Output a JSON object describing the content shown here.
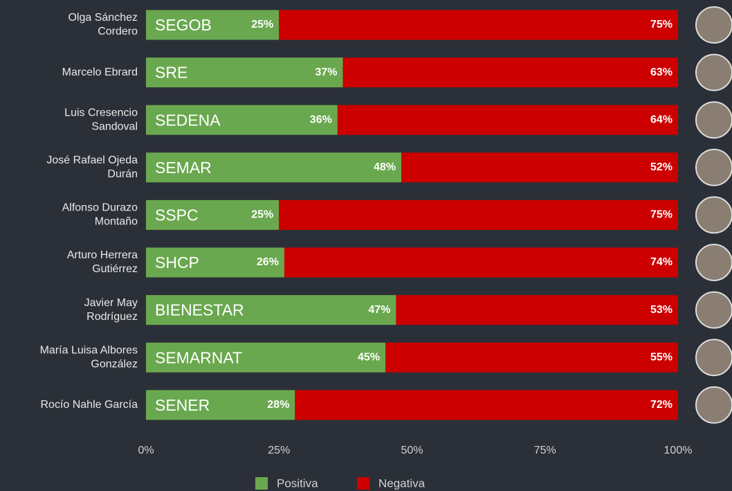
{
  "chart_data": {
    "type": "stacked-bar",
    "categories": [
      [
        "Olga Sánchez",
        "Cordero"
      ],
      [
        "Marcelo Ebrard"
      ],
      [
        "Luis Cresencio",
        "Sandoval"
      ],
      [
        "José Rafael Ojeda",
        "Durán"
      ],
      [
        "Alfonso Durazo",
        "Montaño"
      ],
      [
        "Arturo Herrera",
        "Gutiérrez"
      ],
      [
        "Javier May",
        "Rodríguez"
      ],
      [
        "María Luisa Albores",
        "González"
      ],
      [
        "Rocío Nahle García"
      ]
    ],
    "agencies": [
      "SEGOB",
      "SRE",
      "SEDENA",
      "SEMAR",
      "SSPC",
      "SHCP",
      "BIENESTAR",
      "SEMARNAT",
      "SENER"
    ],
    "series": [
      {
        "name": "Positiva",
        "color": "#6aa84f",
        "values": [
          25,
          37,
          36,
          48,
          25,
          26,
          47,
          45,
          28
        ],
        "value_labels": [
          "25%",
          "37%",
          "36%",
          "48%",
          "25%",
          "26%",
          "47%",
          "45%",
          "28%"
        ]
      },
      {
        "name": "Negativa",
        "color": "#cc0000",
        "values": [
          75,
          63,
          64,
          52,
          75,
          74,
          53,
          55,
          72
        ],
        "value_labels": [
          "75%",
          "63%",
          "64%",
          "52%",
          "75%",
          "74%",
          "53%",
          "55%",
          "72%"
        ]
      }
    ],
    "xlim": [
      0,
      100
    ],
    "xticks": [
      {
        "value": 0,
        "label": "0%"
      },
      {
        "value": 25,
        "label": "25%"
      },
      {
        "value": 50,
        "label": "50%"
      },
      {
        "value": 75,
        "label": "75%"
      },
      {
        "value": 100,
        "label": "100%"
      }
    ]
  }
}
